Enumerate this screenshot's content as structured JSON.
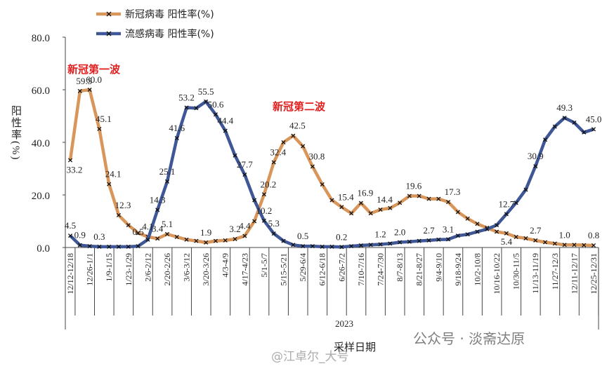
{
  "chart_data": {
    "type": "line",
    "x_label": "采样日期",
    "x_group_label": "2023",
    "y_label": "阳性率(%)",
    "annotations": [
      "新冠第一波",
      "新冠第二波"
    ],
    "watermarks": [
      "公众号 · 淡斋达原",
      "@江卓尔_大号"
    ],
    "categories": [
      "12/12-12/18",
      null,
      "12/26-1/1",
      null,
      "1/9-1/15",
      null,
      "1/23-1/29",
      null,
      "2/6-2/12",
      null,
      "2/20-2/26",
      null,
      "3/6-3/12",
      null,
      "3/20-3/26",
      null,
      "4/3-4/9",
      null,
      "4/17-4/23",
      null,
      "5/1-5/7",
      null,
      "5/15-5/21",
      null,
      "5/29-6/4",
      null,
      "6/12-6/18",
      null,
      "6/26-7/2",
      null,
      "7/10-7/16",
      null,
      "7/24-7/30",
      null,
      "8/7-8/13",
      null,
      "8/21-8/27",
      null,
      "9/4-9/10",
      null,
      "9/18-9/24",
      null,
      "10/2-10/8",
      null,
      "10/16-10/22",
      null,
      "10/30-11/5",
      null,
      "11/13-11/19",
      null,
      "11/27-12/3",
      null,
      "12/11-12/17",
      null,
      "12/25-12/31"
    ],
    "ylim": [
      0,
      80
    ],
    "yticks": [
      {
        "value": 0,
        "label": "0.0"
      },
      {
        "value": 20,
        "label": "20.0"
      },
      {
        "value": 40,
        "label": "40.0"
      },
      {
        "value": 60,
        "label": "60.0"
      },
      {
        "value": 80,
        "label": "80.0"
      }
    ],
    "legend": "top-left",
    "series": [
      {
        "name": "新冠病毒 阳性率(%)",
        "color": "#d9965a",
        "values": [
          33.2,
          59.5,
          60.0,
          45.1,
          24.1,
          12.3,
          8.5,
          5.5,
          4.1,
          3.4,
          5.1,
          4,
          3,
          2.5,
          1.9,
          2.5,
          2.7,
          3.2,
          4.4,
          10,
          20.2,
          32.4,
          40,
          42.5,
          38.5,
          30.8,
          24,
          18,
          15.4,
          13,
          16.9,
          13,
          14.4,
          15,
          17,
          19.6,
          19.6,
          18.5,
          18.5,
          17.3,
          13.5,
          11,
          9,
          7.5,
          6,
          5.4,
          4,
          3.5,
          2.7,
          2,
          1.5,
          1.0,
          1.0,
          0.9,
          0.8
        ],
        "value_labels": [
          "33.2",
          "59.5",
          "60.0",
          "45.1",
          "24.1",
          "12.3",
          null,
          null,
          "4.1",
          "3.4",
          "5.1",
          null,
          null,
          null,
          "1.9",
          null,
          null,
          "3.2",
          "4.4",
          null,
          "20.2",
          "32.4",
          null,
          "42.5",
          null,
          "30.8",
          null,
          null,
          "15.4",
          null,
          "16.9",
          null,
          "14.4",
          null,
          null,
          "19.6",
          null,
          null,
          null,
          "17.3",
          null,
          null,
          null,
          null,
          null,
          "5.4",
          null,
          null,
          "2.7",
          null,
          null,
          "1.0",
          null,
          null,
          "0.8"
        ]
      },
      {
        "name": "流感病毒 阳性率(%)",
        "color": "#3f5796",
        "values": [
          4.5,
          0.9,
          0.5,
          0.3,
          0.3,
          0.3,
          0.3,
          0.5,
          3,
          14.3,
          25.1,
          41.6,
          53.2,
          53,
          55.5,
          50.6,
          44.4,
          35,
          27.7,
          18,
          10.2,
          5.3,
          2.5,
          1,
          0.5,
          0.5,
          0.3,
          0.3,
          0.2,
          0.5,
          0.8,
          1,
          1.2,
          1.5,
          2.0,
          2.2,
          2.5,
          2.7,
          3,
          3.1,
          4.5,
          5,
          6,
          7,
          8.5,
          12.7,
          17,
          22,
          30.9,
          41,
          46,
          49.3,
          47.5,
          43.8,
          45.0
        ],
        "value_labels": [
          "4.5",
          "0.9",
          null,
          "0.3",
          null,
          null,
          null,
          "0.5",
          null,
          "14.3",
          "25.1",
          "41.6",
          "53.2",
          null,
          "55.5",
          "50.6",
          "44.4",
          null,
          "27.7",
          null,
          "10.2",
          "5.3",
          null,
          null,
          "0.5",
          null,
          null,
          null,
          "0.2",
          null,
          null,
          null,
          "1.2",
          null,
          "2.0",
          null,
          null,
          "2.7",
          null,
          "3.1",
          null,
          null,
          null,
          null,
          null,
          "12.7",
          null,
          null,
          "30.9",
          null,
          null,
          "49.3",
          null,
          null,
          "45.0"
        ]
      }
    ]
  }
}
